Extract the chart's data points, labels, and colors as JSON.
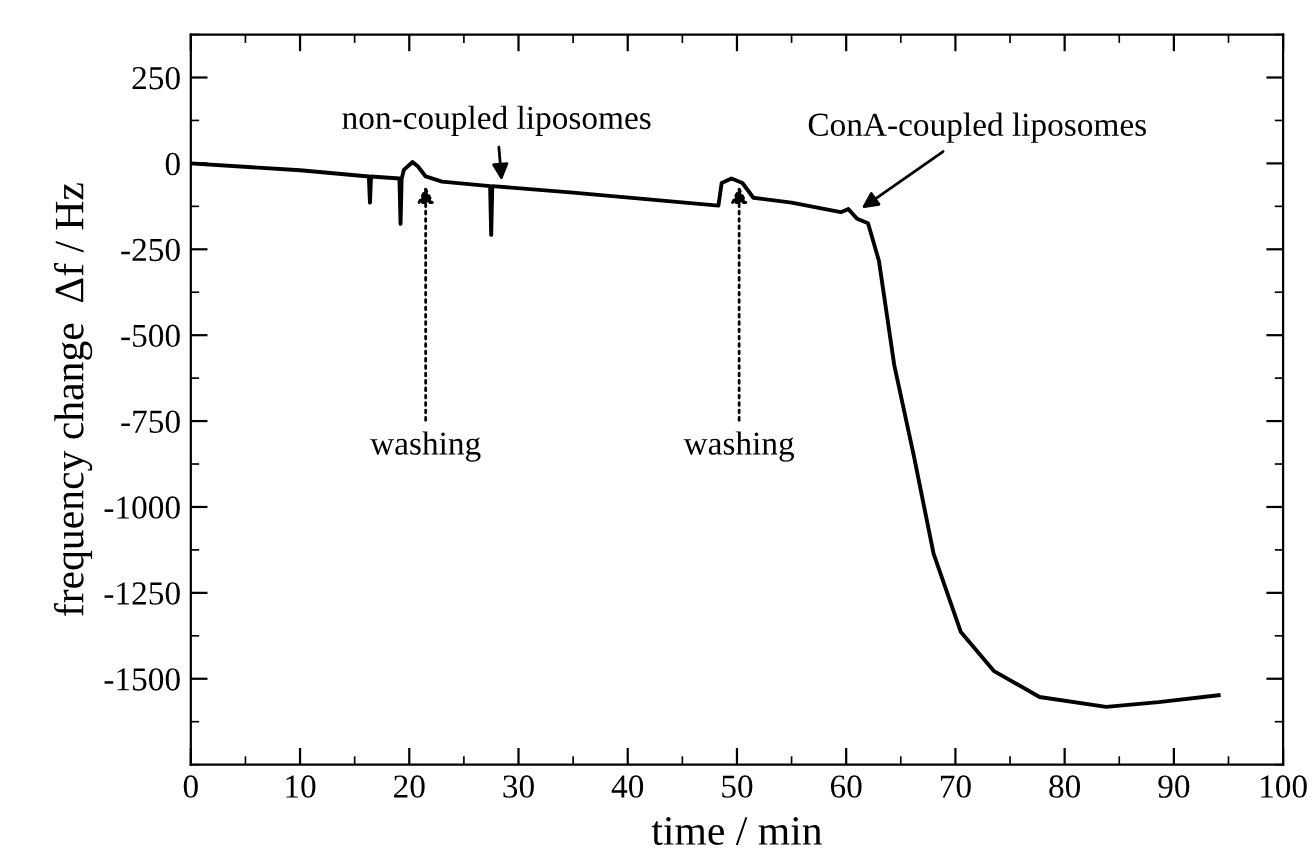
{
  "chart_data": {
    "type": "line",
    "xlabel": "time / min",
    "ylabel": "frequency change  Δf / Hz",
    "x": [
      0,
      10,
      16.3,
      16.4,
      16.5,
      19.1,
      19.2,
      19.3,
      19.5,
      20.3,
      20.8,
      21.5,
      23,
      27.4,
      27.5,
      27.6,
      35,
      48.3,
      48.6,
      49.5,
      50.5,
      51.5,
      55,
      59.5,
      60.2,
      61,
      62,
      63,
      64.4,
      66.2,
      68,
      70.5,
      73.5,
      77.7,
      83.8,
      88.6,
      94.1
    ],
    "series": [
      {
        "color": "#000000",
        "values": [
          0,
          -20,
          -38,
          -114,
          -38,
          -44,
          -176,
          -45,
          -19,
          4,
          -9,
          -38,
          -53,
          -66,
          -208,
          -66,
          -85,
          -123,
          -57,
          -44,
          -57,
          -100,
          -114,
          -142,
          -133,
          -161,
          -174,
          -284,
          -587,
          -852,
          -1136,
          -1364,
          -1477,
          -1553,
          -1582,
          -1568,
          -1548
        ]
      }
    ],
    "xlim": [
      0,
      100
    ],
    "xticks": [
      0,
      10,
      20,
      30,
      40,
      50,
      60,
      70,
      80,
      90,
      100
    ],
    "ylim": [
      -1750,
      375
    ],
    "yticks": [
      250,
      0,
      -250,
      -500,
      -750,
      -1000,
      -1250,
      -1500
    ],
    "grid": false,
    "legend": false,
    "marker": "none",
    "line_style": "solid",
    "annotations": [
      {
        "text": "non-coupled liposomes",
        "x": 28.5,
        "y": -66
      },
      {
        "text": "washing",
        "x": 21.5,
        "y": -50
      },
      {
        "text": "washing",
        "x": 50.2,
        "y": -50
      },
      {
        "text": "ConA-coupled liposomes",
        "x": 61,
        "y": -140
      }
    ]
  }
}
